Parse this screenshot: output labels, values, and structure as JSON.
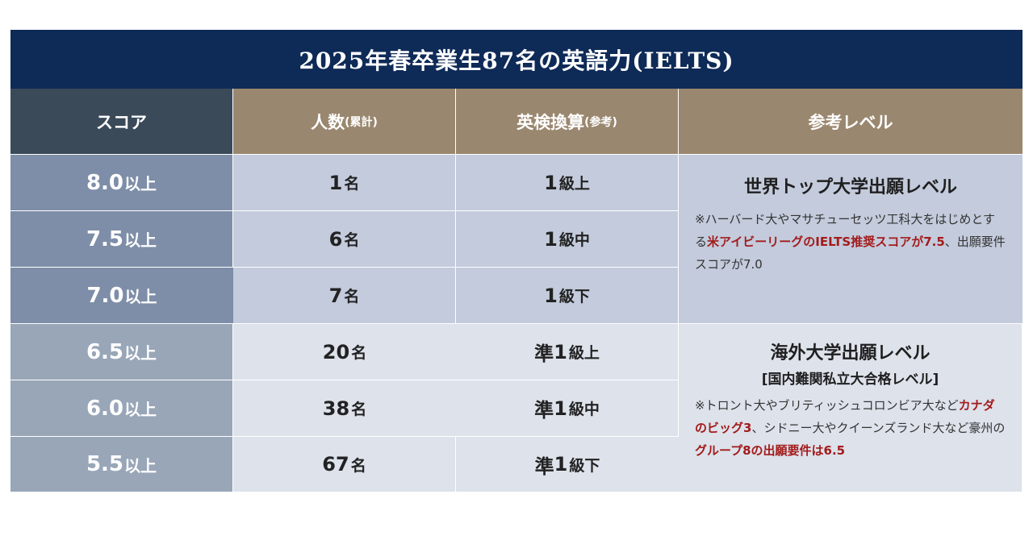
{
  "title": "2025年春卒業生87名の英語力(IELTS)",
  "headers": {
    "score": "スコア",
    "count": "人数",
    "count_note": "(累計)",
    "eiken": "英検換算",
    "eiken_note": "(参考)",
    "level": "参考レベル"
  },
  "rows": [
    {
      "score": "8.0",
      "suffix": "以上",
      "count": "1",
      "unit": "名",
      "eiken_prefix": "",
      "eiken_num": "1",
      "eiken_grade": "級上"
    },
    {
      "score": "7.5",
      "suffix": "以上",
      "count": "6",
      "unit": "名",
      "eiken_prefix": "",
      "eiken_num": "1",
      "eiken_grade": "級中"
    },
    {
      "score": "7.0",
      "suffix": "以上",
      "count": "7",
      "unit": "名",
      "eiken_prefix": "",
      "eiken_num": "1",
      "eiken_grade": "級下"
    },
    {
      "score": "6.5",
      "suffix": "以上",
      "count": "20",
      "unit": "名",
      "eiken_prefix": "準",
      "eiken_num": "1",
      "eiken_grade": "級上"
    },
    {
      "score": "6.0",
      "suffix": "以上",
      "count": "38",
      "unit": "名",
      "eiken_prefix": "準",
      "eiken_num": "1",
      "eiken_grade": "級中"
    },
    {
      "score": "5.5",
      "suffix": "以上",
      "count": "67",
      "unit": "名",
      "eiken_prefix": "準",
      "eiken_num": "1",
      "eiken_grade": "級下"
    }
  ],
  "levels": [
    {
      "title": "世界トップ大学出願レベル",
      "subtitle": "",
      "note": [
        {
          "text": "※ハーバード大やマサチューセッツ工科大をはじめとする",
          "highlight": false
        },
        {
          "text": "米アイビーリーグのIELTS推奨スコアが7.5",
          "highlight": true
        },
        {
          "text": "、出願要件スコアが7.0",
          "highlight": false
        }
      ]
    },
    {
      "title": "海外大学出願レベル",
      "subtitle": "[国内難関私立大合格レベル]",
      "note": [
        {
          "text": "※トロント大やブリティッシュコロンビア大など",
          "highlight": false
        },
        {
          "text": "カナダのビッグ3",
          "highlight": true
        },
        {
          "text": "、シドニー大やクイーンズランド大など豪州の",
          "highlight": false
        },
        {
          "text": "グループ8の出願要件は6.5",
          "highlight": true
        }
      ]
    }
  ],
  "colors": {
    "title_bg": "#0e2a57",
    "header_score_bg": "#3b4a59",
    "header_tan_bg": "#9a876f",
    "row_dark": "#c3cbdc",
    "row_light": "#dde2eb",
    "highlight": "#a31b1b"
  }
}
